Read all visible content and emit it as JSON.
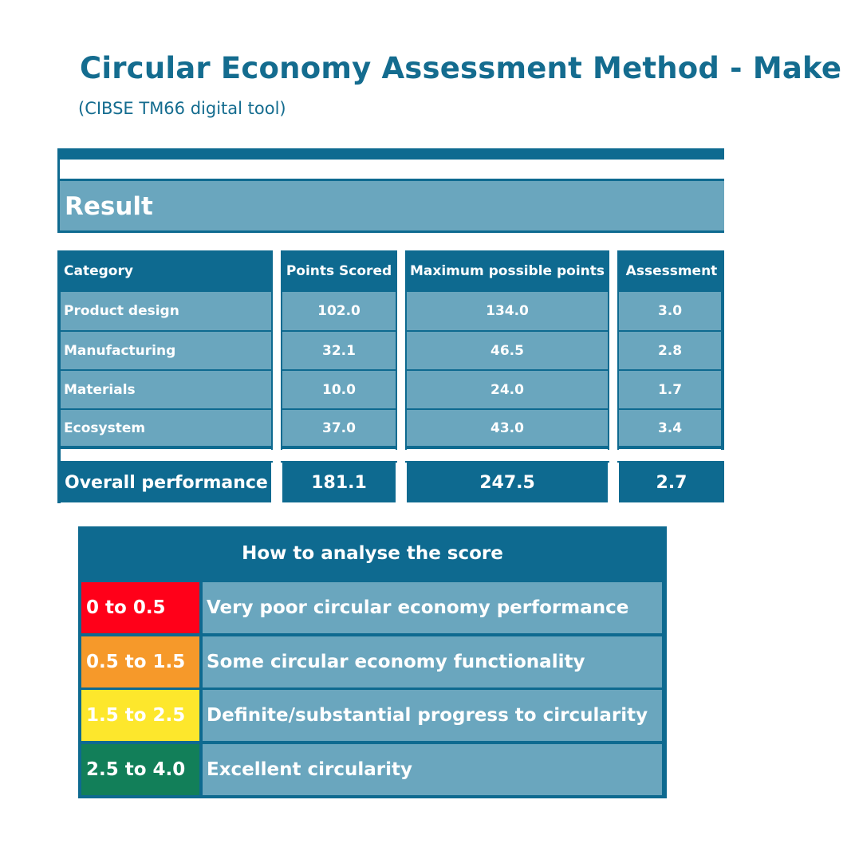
{
  "header": {
    "title": "Circular Economy Assessment Method - Make",
    "subtitle": "(CIBSE TM66 digital tool)"
  },
  "result": {
    "label": "Result"
  },
  "table": {
    "headers": {
      "category": "Category",
      "points": "Points Scored",
      "max": "Maximum possible points",
      "assessment": "Assessment"
    },
    "rows": [
      {
        "category": "Product design",
        "points": "102.0",
        "max": "134.0",
        "assessment": "3.0"
      },
      {
        "category": "Manufacturing",
        "points": "32.1",
        "max": "46.5",
        "assessment": "2.8"
      },
      {
        "category": "Materials",
        "points": "10.0",
        "max": "24.0",
        "assessment": "1.7"
      },
      {
        "category": "Ecosystem",
        "points": "37.0",
        "max": "43.0",
        "assessment": "3.4"
      }
    ],
    "overall": {
      "label": "Overall performance",
      "points": "181.1",
      "max": "247.5",
      "assessment": "2.7"
    }
  },
  "legend": {
    "title": "How to analyse the score",
    "items": [
      {
        "range": "0 to 0.5",
        "description": "Very poor circular economy performance",
        "color": "#ff0019"
      },
      {
        "range": "0.5 to 1.5",
        "description": "Some circular economy functionality",
        "color": "#f6992a"
      },
      {
        "range": "1.5 to 2.5",
        "description": "Definite/substantial progress to circularity",
        "color": "#fde72c"
      },
      {
        "range": "2.5 to 4.0",
        "description": "Excellent circularity",
        "color": "#127f59"
      }
    ]
  },
  "colors": {
    "primary": "#0e6a90",
    "light": "#6aa6be",
    "title": "#146c8f"
  }
}
